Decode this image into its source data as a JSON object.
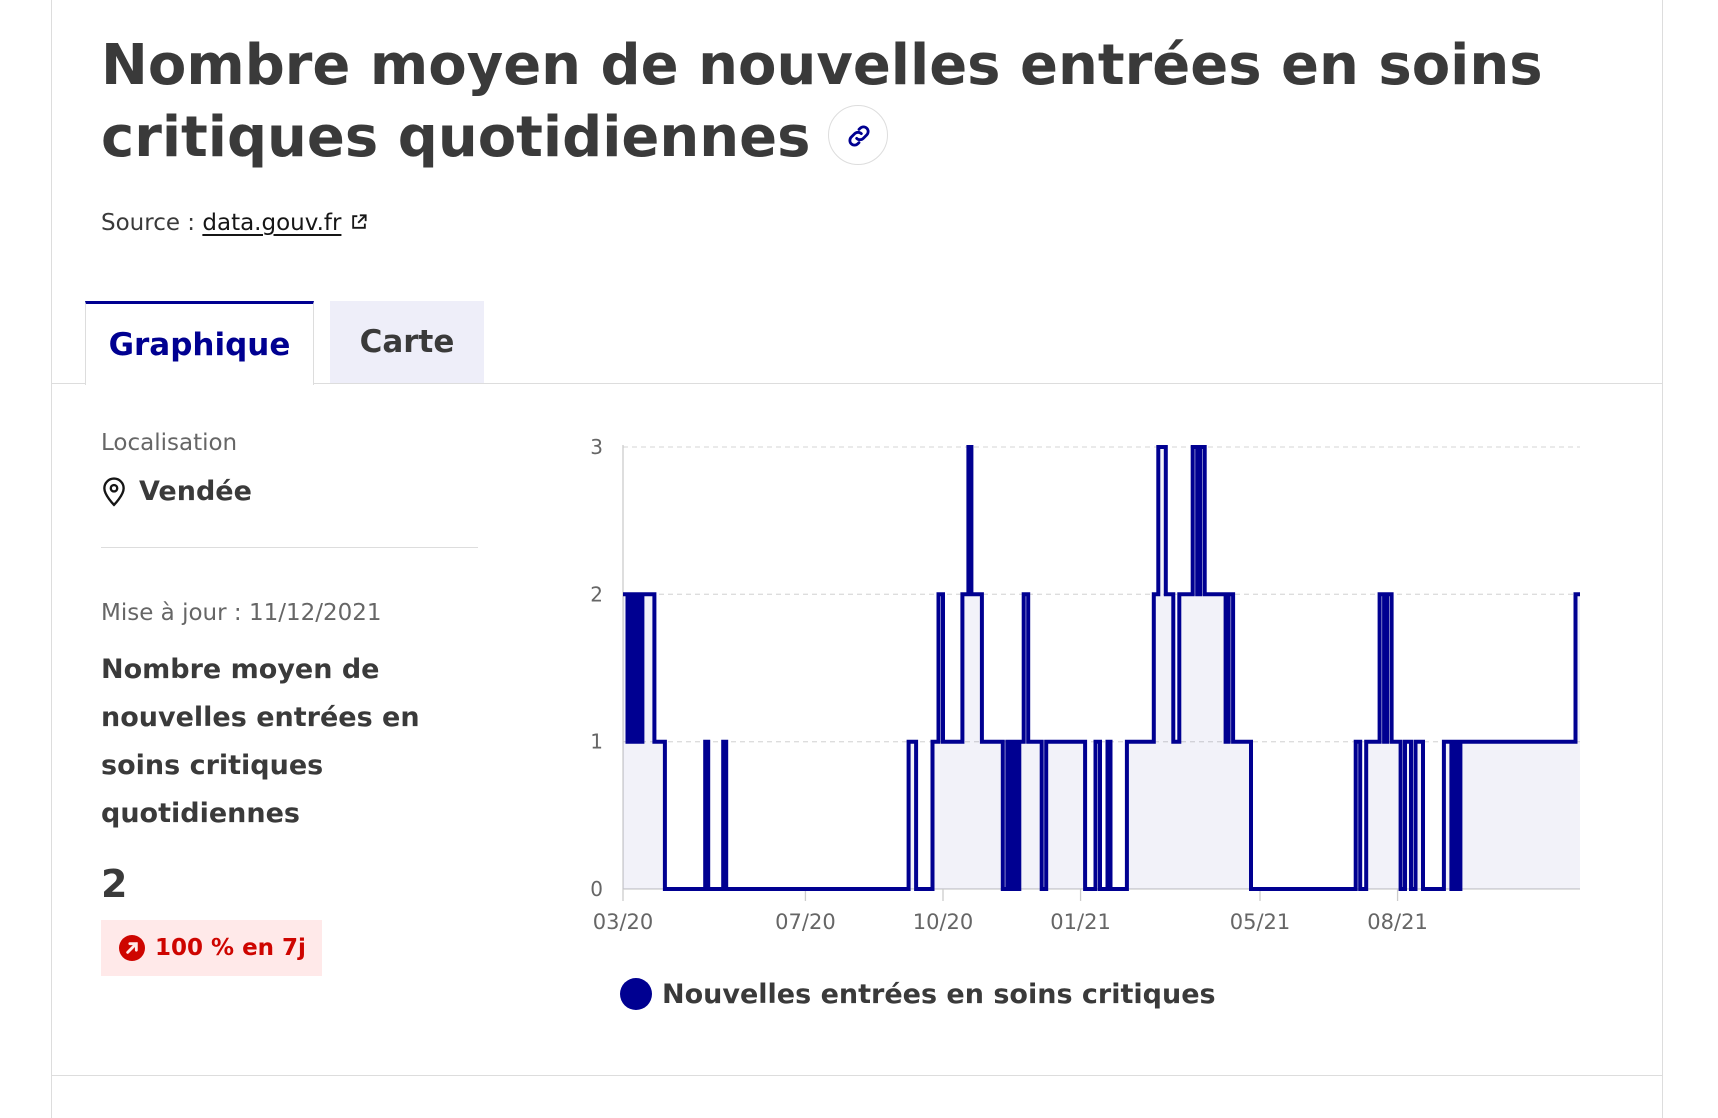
{
  "header": {
    "title": "Nombre moyen de nouvelles entrées en soins critiques quotidiennes",
    "source_prefix": "Source :",
    "source_link": "data.gouv.fr"
  },
  "tabs": [
    {
      "label": "Graphique",
      "active": true
    },
    {
      "label": "Carte",
      "active": false
    }
  ],
  "sidebar": {
    "location_label": "Localisation",
    "location_value": "Vendée",
    "updated": "Mise à jour : 11/12/2021",
    "metric_label": "Nombre moyen de nouvelles entrées en soins critiques quotidiennes",
    "metric_value": "2",
    "trend": "100 % en 7j"
  },
  "colors": {
    "accent": "#000091",
    "trend_text": "#ce0500",
    "trend_bg": "#ffe9e9"
  },
  "chart_data": {
    "type": "line",
    "title": "",
    "xlabel": "",
    "ylabel": "",
    "ylim": [
      0,
      3
    ],
    "grid": "horizontal dashed",
    "y_ticks": [
      "0",
      "1",
      "2",
      "3"
    ],
    "x_ticks": [
      {
        "date": "2020-03-01",
        "label": "03/20"
      },
      {
        "date": "2020-07-01",
        "label": "07/20"
      },
      {
        "date": "2020-10-01",
        "label": "10/20"
      },
      {
        "date": "2021-01-01",
        "label": "01/21"
      },
      {
        "date": "2021-05-01",
        "label": "05/21"
      },
      {
        "date": "2021-08-01",
        "label": "08/21"
      }
    ],
    "series": [
      {
        "name": "Nouvelles entrées en soins critiques",
        "color": "#000091",
        "steps": [
          [
            "2020-03-01",
            2
          ],
          [
            "2020-03-04",
            1
          ],
          [
            "2020-03-06",
            2
          ],
          [
            "2020-03-08",
            1
          ],
          [
            "2020-03-10",
            2
          ],
          [
            "2020-03-12",
            1
          ],
          [
            "2020-03-14",
            2
          ],
          [
            "2020-03-22",
            1
          ],
          [
            "2020-03-29",
            0
          ],
          [
            "2020-04-25",
            1
          ],
          [
            "2020-04-27",
            0
          ],
          [
            "2020-05-07",
            1
          ],
          [
            "2020-05-09",
            0
          ],
          [
            "2020-09-08",
            1
          ],
          [
            "2020-09-13",
            0
          ],
          [
            "2020-09-24",
            1
          ],
          [
            "2020-09-28",
            2
          ],
          [
            "2020-10-01",
            1
          ],
          [
            "2020-10-14",
            2
          ],
          [
            "2020-10-18",
            3
          ],
          [
            "2020-10-20",
            2
          ],
          [
            "2020-10-27",
            1
          ],
          [
            "2020-11-10",
            0
          ],
          [
            "2020-11-13",
            1
          ],
          [
            "2020-11-15",
            0
          ],
          [
            "2020-11-17",
            1
          ],
          [
            "2020-11-19",
            0
          ],
          [
            "2020-11-21",
            1
          ],
          [
            "2020-11-24",
            2
          ],
          [
            "2020-11-27",
            1
          ],
          [
            "2020-12-06",
            0
          ],
          [
            "2020-12-09",
            1
          ],
          [
            "2021-01-04",
            0
          ],
          [
            "2021-01-11",
            1
          ],
          [
            "2021-01-14",
            0
          ],
          [
            "2021-01-19",
            1
          ],
          [
            "2021-01-21",
            0
          ],
          [
            "2021-02-01",
            1
          ],
          [
            "2021-02-19",
            2
          ],
          [
            "2021-02-22",
            3
          ],
          [
            "2021-02-27",
            2
          ],
          [
            "2021-03-04",
            1
          ],
          [
            "2021-03-08",
            2
          ],
          [
            "2021-03-17",
            3
          ],
          [
            "2021-03-20",
            2
          ],
          [
            "2021-03-22",
            3
          ],
          [
            "2021-03-25",
            2
          ],
          [
            "2021-04-08",
            1
          ],
          [
            "2021-04-10",
            2
          ],
          [
            "2021-04-13",
            1
          ],
          [
            "2021-04-25",
            0
          ],
          [
            "2021-07-04",
            1
          ],
          [
            "2021-07-07",
            0
          ],
          [
            "2021-07-11",
            1
          ],
          [
            "2021-07-20",
            2
          ],
          [
            "2021-07-23",
            1
          ],
          [
            "2021-07-25",
            2
          ],
          [
            "2021-07-28",
            1
          ],
          [
            "2021-08-03",
            0
          ],
          [
            "2021-08-06",
            1
          ],
          [
            "2021-08-10",
            0
          ],
          [
            "2021-08-13",
            1
          ],
          [
            "2021-08-18",
            0
          ],
          [
            "2021-09-01",
            1
          ],
          [
            "2021-09-06",
            0
          ],
          [
            "2021-09-08",
            1
          ],
          [
            "2021-09-10",
            0
          ],
          [
            "2021-09-12",
            1
          ],
          [
            "2021-11-28",
            2
          ],
          [
            "2021-12-01",
            2
          ]
        ]
      }
    ]
  }
}
